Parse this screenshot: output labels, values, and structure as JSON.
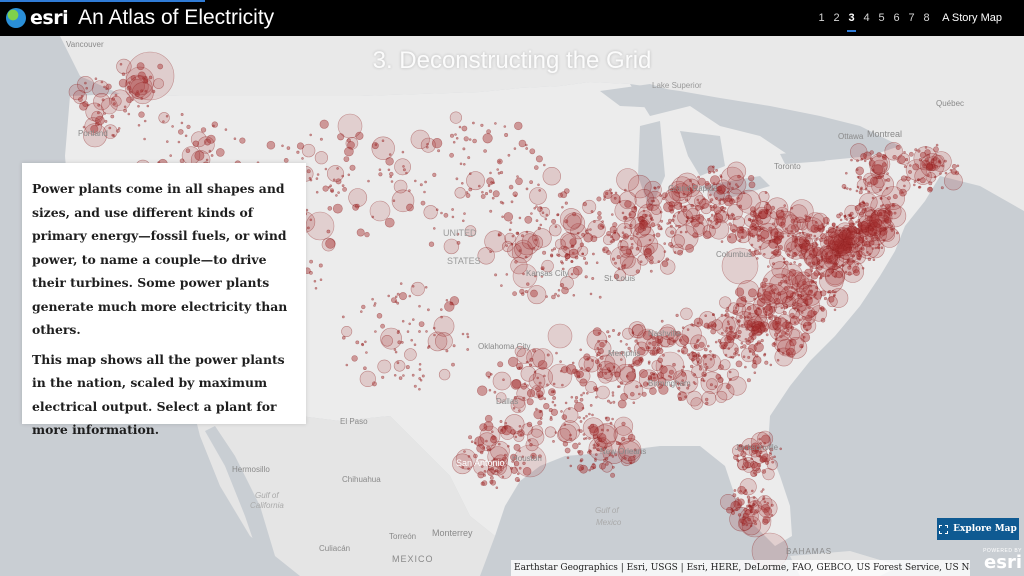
{
  "header": {
    "logo_text": "esri",
    "app_title": "An Atlas of Electricity",
    "nav_items": [
      "1",
      "2",
      "3",
      "4",
      "5",
      "6",
      "7",
      "8"
    ],
    "active_index": 2,
    "storymap_label": "A Story Map"
  },
  "section_title": "3. Deconstructing the Grid",
  "panel": {
    "paragraph_1": "Power plants come in all shapes and sizes, and use different kinds of primary energy—fossil fuels, or wind power, to name a couple—to drive their turbines. Some power plants generate much more electricity than others.",
    "paragraph_2": "This map shows all the power plants in the nation, scaled by maximum electrical output. Select a plant for more information."
  },
  "map_labels": {
    "vancouver": "Vancouver",
    "portland": "Portland",
    "lake_superior": "Lake Superior",
    "quebec": "Québec",
    "ottawa": "Ottawa",
    "montreal": "Montreal",
    "toronto": "Toronto",
    "united_states": "UNITED\nSTATES",
    "grand_rapids": "Grand Rapids",
    "columbus": "Columbus",
    "kansas_city": "Kansas City",
    "st_louis": "St. Louis",
    "nashville": "Nashville",
    "oklahoma_city": "Oklahoma City",
    "memphis": "Memphis",
    "birmingham": "Birmingham",
    "dallas": "Dallas",
    "el_paso": "El Paso",
    "san_antonio": "San Antonio",
    "houston": "Houston",
    "new_orleans": "New Orleans",
    "jacksonville": "Jacksonville",
    "hermosillo": "Hermosillo",
    "chihuahua": "Chihuahua",
    "gulf_of_california": "Gulf of\nCalifornia",
    "torreon": "Torreón",
    "monterrey": "Monterrey",
    "culiacan": "Culiacán",
    "mexico": "MEXICO",
    "gulf_of_mexico": "Gulf of\nMexico",
    "bahamas": "BAHAMAS"
  },
  "explore_button": "Explore Map",
  "attribution": "Earthstar Geographics | Esri, USGS | Esri, HERE, DeLorme, FAO, GEBCO, US Forest Service, US Nation...",
  "powered_by": {
    "small": "POWERED BY",
    "brand": "esri"
  },
  "colors": {
    "dot_fill": "#a83232",
    "dot_stroke": "#8b1a1a",
    "land": "#e6e6e6",
    "water": "#c9ced3",
    "header_bg": "#000000",
    "accent": "#2f7bd6",
    "button_bg": "#0f5a92"
  }
}
